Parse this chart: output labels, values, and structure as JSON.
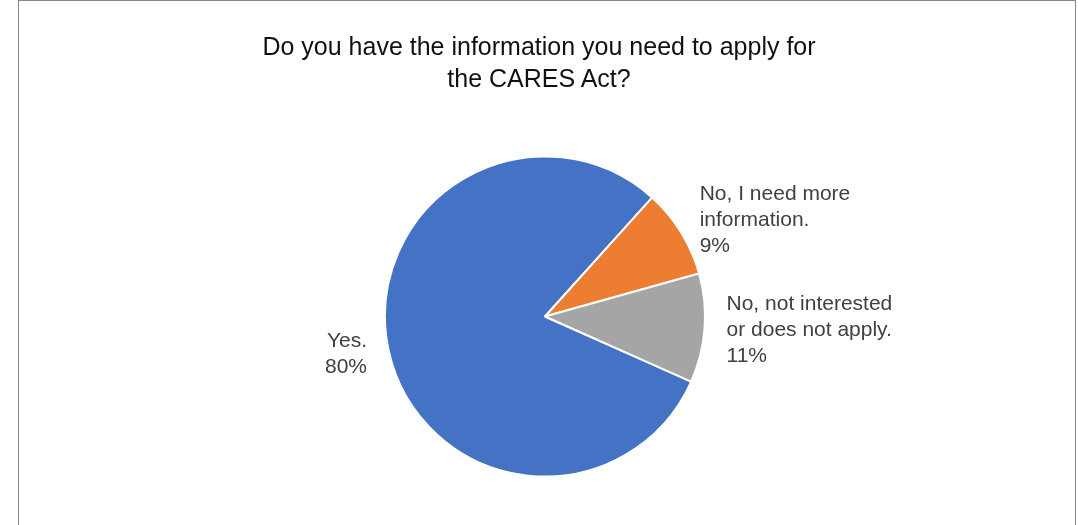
{
  "chart_data": {
    "type": "pie",
    "title": "Do you have the information you need to apply for the CARES Act?",
    "categories": [
      "Yes.",
      "No, I need more information.",
      "No, not interested or does not apply."
    ],
    "values": [
      80,
      9,
      11
    ],
    "value_labels": [
      "80%",
      "9%",
      "11%"
    ],
    "colors": [
      "#4472c4",
      "#ed7d31",
      "#a5a5a5"
    ],
    "legend": false
  }
}
